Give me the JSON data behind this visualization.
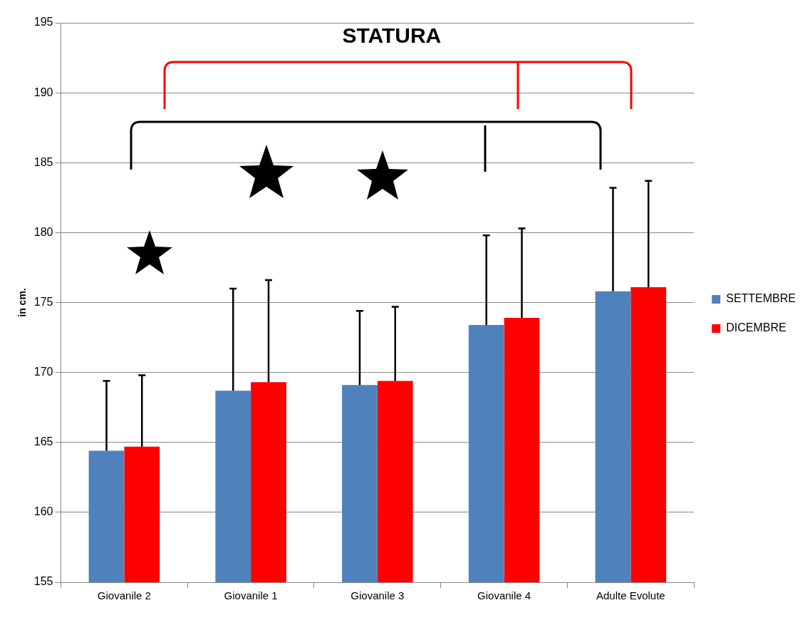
{
  "chart_data": {
    "type": "bar",
    "title": "STATURA",
    "ylabel": "in cm.",
    "categories": [
      "Giovanile 2",
      "Giovanile 1",
      "Giovanile 3",
      "Giovanile 4",
      "Adulte Evolute"
    ],
    "series": [
      {
        "name": "SETTEMBRE",
        "color": "#4f81bd",
        "values": [
          164.4,
          168.7,
          169.1,
          173.4,
          175.8
        ],
        "errors": [
          [
            164.4,
            169.4
          ],
          [
            168.7,
            176.0
          ],
          [
            169.1,
            174.4
          ],
          [
            173.4,
            179.8
          ],
          [
            175.8,
            183.2
          ]
        ]
      },
      {
        "name": "DICEMBRE",
        "color": "#ff0000",
        "values": [
          164.7,
          169.3,
          169.4,
          173.9,
          176.1
        ],
        "errors": [
          [
            164.7,
            169.8
          ],
          [
            169.3,
            176.6
          ],
          [
            169.4,
            174.7
          ],
          [
            173.9,
            180.3
          ],
          [
            176.1,
            183.7
          ]
        ]
      }
    ],
    "ylim": [
      155,
      195
    ],
    "yticks": [
      155,
      160,
      165,
      170,
      175,
      180,
      185,
      190,
      195
    ],
    "grid": "y",
    "legend": "right"
  }
}
